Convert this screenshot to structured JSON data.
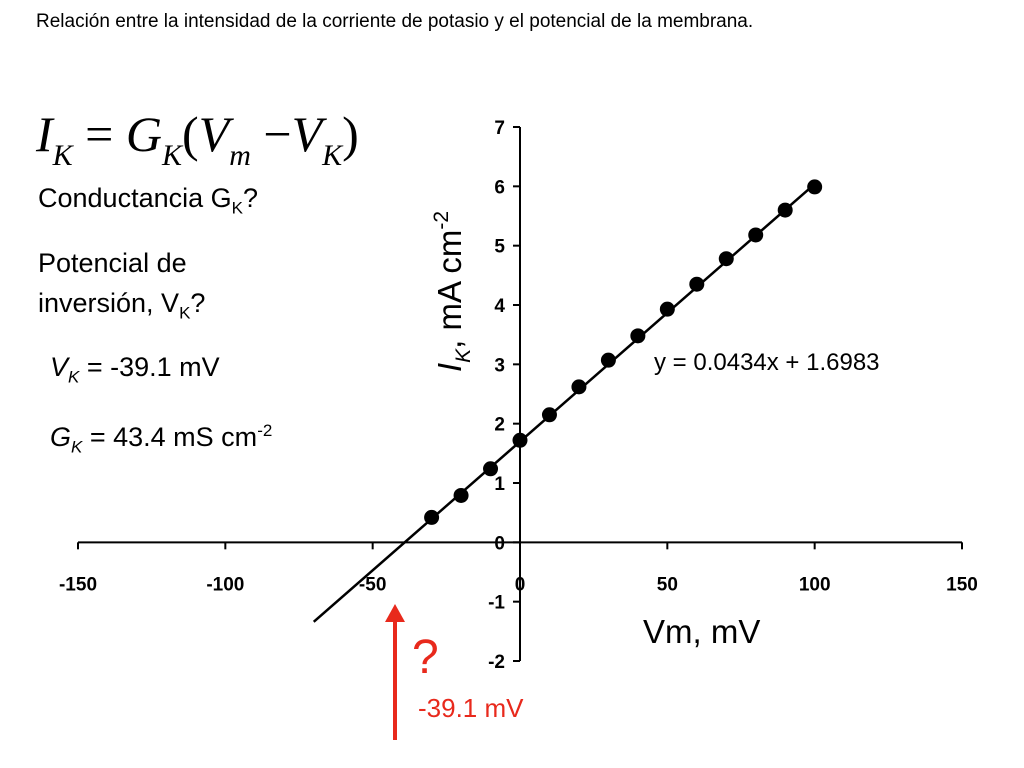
{
  "title": "Relación entre la intensidad de la corriente de potasio y el potencial de la membrana.",
  "formula": {
    "lhs": "I",
    "lhs_sub": "K",
    "eq": "=",
    "g": "G",
    "g_sub": "K",
    "open": "(",
    "v1": "V",
    "v1_sub": "m",
    "minus": "−",
    "v2": "V",
    "v2_sub": "K",
    "close": ")"
  },
  "questions": {
    "q1_text": "Conductancia G",
    "q1_sub": "K",
    "q1_end": "?",
    "q2_line1": "Potencial de",
    "q2_line2": "inversión, V",
    "q2_sub": "K",
    "q2_end": "?"
  },
  "results": {
    "vk_symbol": "V",
    "vk_sub": "K",
    "vk_value": " = -39.1 mV",
    "gk_symbol": "G",
    "gk_sub": "K",
    "gk_value": " = 43.4 mS cm",
    "gk_sup": "-2"
  },
  "annotation": {
    "question_mark": "?",
    "arrow_label": "-39.1 mV",
    "color": "#e8291c"
  },
  "chart_data": {
    "type": "scatter",
    "xlabel": "Vm, mV",
    "ylabel": "I_K, mA cm^-2",
    "xlim": [
      -150,
      150
    ],
    "ylim": [
      -2,
      7
    ],
    "x_ticks": [
      -150,
      -100,
      -50,
      0,
      50,
      100,
      150
    ],
    "y_ticks": [
      -2,
      -1,
      0,
      1,
      2,
      3,
      4,
      5,
      6,
      7
    ],
    "x_tick_labels": [
      "-150",
      "-100",
      "-50",
      "0",
      "50",
      "100",
      "150"
    ],
    "y_tick_labels": [
      "-2",
      "-1",
      "0",
      "1",
      "2",
      "3",
      "4",
      "5",
      "6",
      "7"
    ],
    "points": {
      "x": [
        -30,
        -20,
        -10,
        0,
        10,
        20,
        30,
        40,
        50,
        60,
        70,
        80,
        90,
        100
      ],
      "y": [
        0.42,
        0.79,
        1.24,
        1.72,
        2.15,
        2.62,
        3.07,
        3.48,
        3.93,
        4.35,
        4.78,
        5.18,
        5.6,
        5.99
      ]
    },
    "trendline": {
      "slope": 0.0434,
      "intercept": 1.6983,
      "x_range": [
        -70,
        100
      ],
      "equation_label": "y = 0.0434x + 1.6983"
    },
    "grid": false,
    "legend": "none"
  }
}
